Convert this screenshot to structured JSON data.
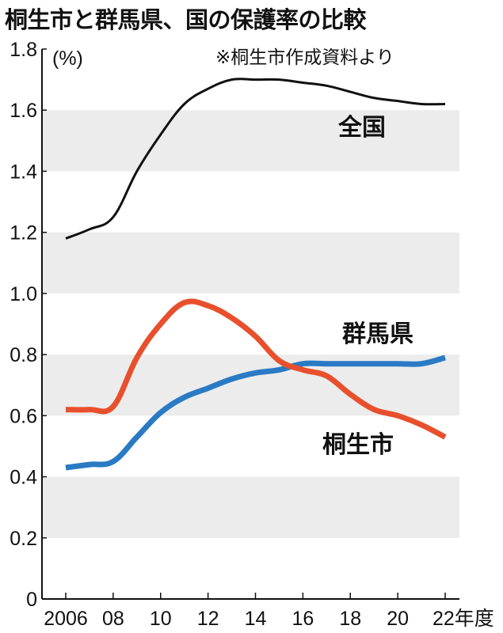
{
  "title": "桐生市と群馬県、国の保護率の比較",
  "chart_data": {
    "type": "line",
    "title": "桐生市と群馬県、国の保護率の比較",
    "source_note": "※桐生市作成資料より",
    "ylabel": "(%)",
    "xlabel": "年度",
    "ylim": [
      0,
      1.8
    ],
    "xlim": [
      2006,
      2022
    ],
    "y_ticks": [
      "0",
      "0.2",
      "0.4",
      "0.6",
      "0.8",
      "1.0",
      "1.2",
      "1.4",
      "1.6",
      "1.8"
    ],
    "x_ticks": [
      "2006",
      "08",
      "10",
      "12",
      "14",
      "16",
      "18",
      "20",
      "22年度"
    ],
    "grid": "alternating horizontal bands",
    "x": [
      2006,
      2007,
      2008,
      2009,
      2010,
      2011,
      2012,
      2013,
      2014,
      2015,
      2016,
      2017,
      2018,
      2019,
      2020,
      2021,
      2022
    ],
    "series": [
      {
        "name": "全国",
        "color": "#111111",
        "values": [
          1.18,
          1.21,
          1.25,
          1.4,
          1.52,
          1.62,
          1.67,
          1.7,
          1.7,
          1.7,
          1.69,
          1.68,
          1.66,
          1.64,
          1.63,
          1.62,
          1.62
        ]
      },
      {
        "name": "群馬県",
        "color": "#2a7ac4",
        "values": [
          0.43,
          0.44,
          0.45,
          0.53,
          0.61,
          0.66,
          0.69,
          0.72,
          0.74,
          0.75,
          0.77,
          0.77,
          0.77,
          0.77,
          0.77,
          0.77,
          0.79
        ]
      },
      {
        "name": "桐生市",
        "color": "#e8502d",
        "values": [
          0.62,
          0.62,
          0.63,
          0.79,
          0.9,
          0.97,
          0.96,
          0.92,
          0.86,
          0.78,
          0.75,
          0.73,
          0.67,
          0.62,
          0.6,
          0.57,
          0.53
        ]
      }
    ]
  }
}
